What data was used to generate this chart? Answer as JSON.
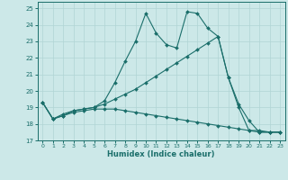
{
  "xlabel": "Humidex (Indice chaleur)",
  "bg_color": "#cce8e8",
  "line_color": "#1a6e6a",
  "grid_color": "#b0d4d4",
  "xlim": [
    -0.5,
    23.5
  ],
  "ylim": [
    17,
    25.4
  ],
  "yticks": [
    17,
    18,
    19,
    20,
    21,
    22,
    23,
    24,
    25
  ],
  "xticks": [
    0,
    1,
    2,
    3,
    4,
    5,
    6,
    7,
    8,
    9,
    10,
    11,
    12,
    13,
    14,
    15,
    16,
    17,
    18,
    19,
    20,
    21,
    22,
    23
  ],
  "line1_x": [
    0,
    1,
    2,
    3,
    4,
    5,
    6,
    7,
    8,
    9,
    10,
    11,
    12,
    13,
    14,
    15,
    16,
    17,
    18,
    19,
    20,
    21,
    22,
    23
  ],
  "line1_y": [
    19.3,
    18.3,
    18.5,
    18.8,
    18.9,
    19.0,
    19.4,
    20.5,
    21.8,
    23.0,
    24.7,
    23.5,
    22.8,
    22.6,
    24.8,
    24.7,
    23.8,
    23.3,
    20.8,
    19.2,
    18.2,
    17.5,
    17.5,
    17.5
  ],
  "line2_x": [
    0,
    1,
    2,
    3,
    4,
    5,
    6,
    7,
    8,
    9,
    10,
    11,
    12,
    13,
    14,
    15,
    16,
    17,
    18,
    19,
    20,
    21,
    22,
    23
  ],
  "line2_y": [
    19.3,
    18.3,
    18.6,
    18.8,
    18.9,
    19.0,
    19.2,
    19.5,
    19.8,
    20.1,
    20.5,
    20.9,
    21.3,
    21.7,
    22.1,
    22.5,
    22.9,
    23.3,
    20.8,
    19.0,
    17.6,
    17.5,
    17.5,
    17.5
  ],
  "line3_x": [
    0,
    1,
    2,
    3,
    4,
    5,
    6,
    7,
    8,
    9,
    10,
    11,
    12,
    13,
    14,
    15,
    16,
    17,
    18,
    19,
    20,
    21,
    22,
    23
  ],
  "line3_y": [
    19.3,
    18.3,
    18.5,
    18.7,
    18.8,
    18.9,
    18.9,
    18.9,
    18.8,
    18.7,
    18.6,
    18.5,
    18.4,
    18.3,
    18.2,
    18.1,
    18.0,
    17.9,
    17.8,
    17.7,
    17.6,
    17.6,
    17.5,
    17.5
  ]
}
